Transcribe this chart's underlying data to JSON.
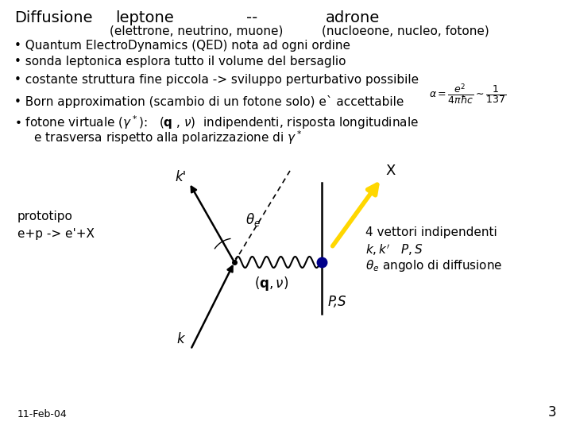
{
  "bg_color": "#ffffff",
  "text_color": "#000000",
  "dot_color": "#00008b",
  "yellow_arrow_color": "#ffd700",
  "title_diffusione": "Diffusione",
  "title_leptone": "leptone",
  "title_dash": "--",
  "title_adrone": "adrone",
  "sub_left": "(elettrone, neutrino, muone)",
  "sub_right": "(nucloeone, nucleo, fotone)",
  "bullet1": "Quantum ElectroDynamics (QED) nota ad ogni ordine",
  "bullet2": "sonda leptonica esplora tutto il volume del bersaglio",
  "bullet3": "costante struttura fine piccola -> sviluppo perturbativo possibile",
  "bullet4": "Born approximation (scambio di un fotone solo) e` accettabile",
  "bullet5a": "fotone virtuale ($\\gamma^*$):   ($\\mathbf{q}$ , $\\nu$)  indipendenti, risposta longitudinale",
  "bullet5b": "   e trasversa rispetto alla polarizzazione di $\\gamma^*$",
  "prototipo": "prototipo\ne+p -> e'+X",
  "right1": "4 vettori indipendenti",
  "right2": "$k, k'$   $P,S$",
  "right3": "$\\theta_e$ angolo di diffusione",
  "date": "11-Feb-04",
  "page": "3"
}
